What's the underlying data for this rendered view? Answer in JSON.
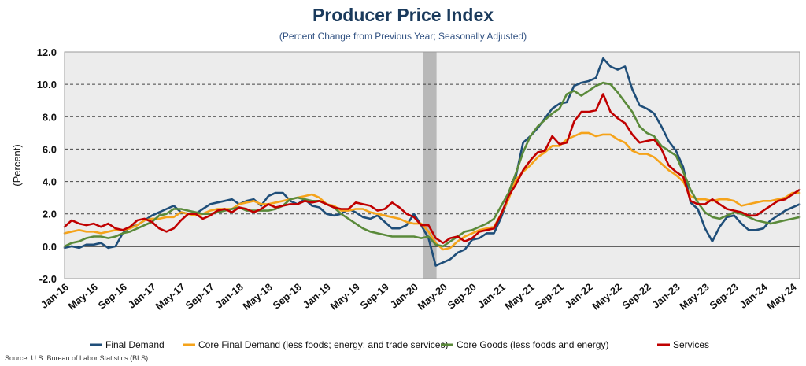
{
  "chart_data": {
    "type": "line",
    "title": "Producer Price Index",
    "subtitle": "(Percent Change from Previous Year; Seasonally Adjusted)",
    "ylabel": "(Percent)",
    "source": "Source: U.S. Bureau of Labor Statistics (BLS)",
    "ylim": [
      -2.0,
      12.0
    ],
    "yticks": [
      "-2.0",
      "0.0",
      "2.0",
      "4.0",
      "6.0",
      "8.0",
      "10.0",
      "12.0"
    ],
    "grid": "horizontal dashed",
    "legend": "bottom",
    "x": [
      "Jan-16",
      "Feb-16",
      "Mar-16",
      "Apr-16",
      "May-16",
      "Jun-16",
      "Jul-16",
      "Aug-16",
      "Sep-16",
      "Oct-16",
      "Nov-16",
      "Dec-16",
      "Jan-17",
      "Feb-17",
      "Mar-17",
      "Apr-17",
      "May-17",
      "Jun-17",
      "Jul-17",
      "Aug-17",
      "Sep-17",
      "Oct-17",
      "Nov-17",
      "Dec-17",
      "Jan-18",
      "Feb-18",
      "Mar-18",
      "Apr-18",
      "May-18",
      "Jun-18",
      "Jul-18",
      "Aug-18",
      "Sep-18",
      "Oct-18",
      "Nov-18",
      "Dec-18",
      "Jan-19",
      "Feb-19",
      "Mar-19",
      "Apr-19",
      "May-19",
      "Jun-19",
      "Jul-19",
      "Aug-19",
      "Sep-19",
      "Oct-19",
      "Nov-19",
      "Dec-19",
      "Jan-20",
      "Feb-20",
      "Mar-20",
      "Apr-20",
      "May-20",
      "Jun-20",
      "Jul-20",
      "Aug-20",
      "Sep-20",
      "Oct-20",
      "Nov-20",
      "Dec-20",
      "Jan-21",
      "Feb-21",
      "Mar-21",
      "Apr-21",
      "May-21",
      "Jun-21",
      "Jul-21",
      "Aug-21",
      "Sep-21",
      "Oct-21",
      "Nov-21",
      "Dec-21",
      "Jan-22",
      "Feb-22",
      "Mar-22",
      "Apr-22",
      "May-22",
      "Jun-22",
      "Jul-22",
      "Aug-22",
      "Sep-22",
      "Oct-22",
      "Nov-22",
      "Dec-22",
      "Jan-23",
      "Feb-23",
      "Mar-23",
      "Apr-23",
      "May-23",
      "Jun-23",
      "Jul-23",
      "Aug-23",
      "Sep-23",
      "Oct-23",
      "Nov-23",
      "Dec-23",
      "Jan-24",
      "Feb-24",
      "Mar-24",
      "Apr-24",
      "May-24",
      "Jun-24"
    ],
    "xtick_labels": [
      "Jan-16",
      "May-16",
      "Sep-16",
      "Jan-17",
      "May-17",
      "Sep-17",
      "Jan-18",
      "May-18",
      "Sep-18",
      "Jan-19",
      "May-19",
      "Sep-19",
      "Jan-20",
      "May-20",
      "Sep-20",
      "Jan-21",
      "May-21",
      "Sep-21",
      "Jan-22",
      "May-22",
      "Sep-22",
      "Jan-23",
      "May-23",
      "Sep-23",
      "Jan-24",
      "May-24"
    ],
    "recession_shading": {
      "start": "Feb-20",
      "end": "Apr-20",
      "color": "#b8b8b8"
    },
    "series": [
      {
        "name": "Final Demand",
        "color": "#1f4e79",
        "values": [
          -0.1,
          0.0,
          -0.1,
          0.1,
          0.1,
          0.2,
          -0.1,
          0.0,
          0.8,
          1.2,
          1.3,
          1.6,
          1.9,
          2.1,
          2.3,
          2.5,
          2.1,
          2.0,
          2.0,
          2.3,
          2.6,
          2.7,
          2.8,
          2.9,
          2.6,
          2.8,
          2.9,
          2.5,
          3.1,
          3.3,
          3.3,
          2.8,
          2.6,
          2.9,
          2.5,
          2.4,
          2.0,
          1.9,
          2.0,
          2.3,
          2.1,
          1.8,
          1.7,
          1.9,
          1.5,
          1.1,
          1.1,
          1.3,
          2.0,
          1.3,
          0.5,
          -1.2,
          -1.0,
          -0.8,
          -0.4,
          -0.2,
          0.4,
          0.5,
          0.8,
          0.8,
          1.8,
          3.0,
          4.3,
          6.4,
          6.8,
          7.3,
          7.9,
          8.5,
          8.8,
          8.9,
          9.9,
          10.1,
          10.2,
          10.4,
          11.6,
          11.1,
          10.9,
          11.1,
          9.7,
          8.7,
          8.5,
          8.2,
          7.4,
          6.5,
          5.9,
          4.9,
          2.7,
          2.3,
          1.1,
          0.3,
          1.2,
          1.8,
          1.9,
          1.4,
          1.0,
          1.0,
          1.1,
          1.6,
          1.9,
          2.2,
          2.4,
          2.6
        ]
      },
      {
        "name": "Core Final Demand (less foods; energy; and trade services)",
        "color": "#f5a31a",
        "values": [
          0.8,
          0.9,
          1.0,
          0.9,
          0.9,
          0.8,
          0.9,
          1.0,
          1.0,
          1.1,
          1.3,
          1.6,
          1.7,
          1.7,
          1.8,
          1.8,
          2.1,
          2.0,
          1.9,
          2.0,
          2.2,
          2.3,
          2.3,
          2.3,
          2.6,
          2.7,
          2.8,
          2.6,
          2.6,
          2.7,
          2.8,
          2.9,
          3.0,
          3.1,
          3.2,
          3.0,
          2.6,
          2.5,
          2.2,
          2.2,
          2.3,
          2.3,
          2.1,
          2.0,
          1.9,
          1.8,
          1.7,
          1.5,
          1.4,
          1.4,
          0.9,
          0.2,
          -0.2,
          -0.1,
          0.3,
          0.6,
          0.8,
          1.0,
          1.1,
          1.2,
          2.0,
          2.9,
          4.1,
          4.6,
          5.0,
          5.5,
          5.8,
          6.2,
          6.2,
          6.6,
          6.8,
          7.0,
          7.0,
          6.8,
          6.9,
          6.9,
          6.6,
          6.4,
          5.9,
          5.7,
          5.7,
          5.5,
          5.1,
          4.7,
          4.4,
          4.0,
          3.1,
          2.9,
          2.9,
          2.8,
          2.9,
          2.9,
          2.8,
          2.5,
          2.6,
          2.7,
          2.8,
          2.8,
          2.9,
          3.0,
          3.3,
          3.3
        ]
      },
      {
        "name": "Core Goods (less foods and energy)",
        "color": "#5a8a3a",
        "values": [
          0.0,
          0.2,
          0.3,
          0.5,
          0.6,
          0.6,
          0.5,
          0.6,
          0.8,
          0.9,
          1.1,
          1.3,
          1.5,
          1.9,
          2.0,
          2.3,
          2.3,
          2.2,
          2.1,
          2.0,
          2.0,
          2.1,
          2.2,
          2.3,
          2.4,
          2.2,
          2.2,
          2.2,
          2.2,
          2.3,
          2.5,
          2.9,
          3.0,
          2.9,
          2.8,
          2.8,
          2.6,
          2.4,
          2.0,
          1.7,
          1.4,
          1.1,
          0.9,
          0.8,
          0.7,
          0.6,
          0.6,
          0.6,
          0.6,
          0.5,
          0.6,
          0.1,
          0.0,
          0.3,
          0.6,
          0.9,
          1.0,
          1.2,
          1.4,
          1.7,
          2.5,
          3.3,
          4.5,
          5.8,
          6.8,
          7.4,
          7.8,
          8.2,
          8.5,
          9.4,
          9.6,
          9.3,
          9.6,
          9.9,
          10.1,
          10.0,
          9.5,
          8.9,
          8.3,
          7.4,
          7.0,
          6.8,
          6.2,
          5.9,
          5.6,
          4.6,
          3.5,
          2.7,
          2.1,
          1.8,
          1.7,
          1.9,
          2.1,
          2.0,
          1.8,
          1.6,
          1.5,
          1.4,
          1.5,
          1.6,
          1.7,
          1.8
        ]
      },
      {
        "name": "Services",
        "color": "#c00000",
        "values": [
          1.2,
          1.6,
          1.4,
          1.3,
          1.4,
          1.2,
          1.4,
          1.1,
          1.0,
          1.2,
          1.6,
          1.7,
          1.5,
          1.1,
          0.9,
          1.1,
          1.6,
          2.0,
          2.0,
          1.7,
          1.9,
          2.2,
          2.3,
          2.1,
          2.4,
          2.3,
          2.1,
          2.3,
          2.6,
          2.4,
          2.5,
          2.6,
          2.6,
          2.8,
          2.7,
          2.8,
          2.6,
          2.4,
          2.3,
          2.3,
          2.7,
          2.6,
          2.5,
          2.2,
          2.3,
          2.7,
          2.4,
          2.0,
          1.8,
          1.3,
          1.3,
          0.5,
          0.2,
          0.5,
          0.6,
          0.3,
          0.5,
          0.9,
          1.0,
          1.1,
          2.0,
          3.1,
          3.8,
          4.7,
          5.3,
          5.8,
          5.9,
          6.8,
          6.3,
          6.4,
          7.7,
          8.3,
          8.3,
          8.4,
          9.4,
          8.3,
          7.9,
          7.6,
          6.9,
          6.4,
          6.5,
          6.6,
          6.0,
          5.0,
          4.6,
          4.3,
          2.8,
          2.6,
          2.6,
          2.9,
          2.6,
          2.3,
          2.2,
          2.1,
          1.9,
          1.9,
          2.2,
          2.5,
          2.8,
          2.9,
          3.2,
          3.5
        ]
      }
    ]
  }
}
